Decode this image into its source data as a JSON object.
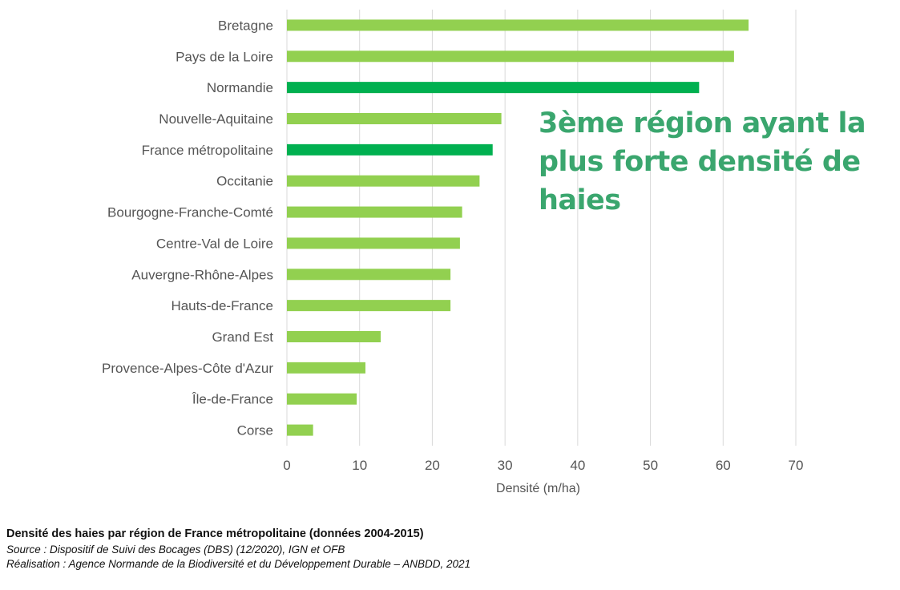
{
  "chart_data": {
    "type": "bar",
    "orientation": "horizontal",
    "categories": [
      "Bretagne",
      "Pays de la Loire",
      "Normandie",
      "Nouvelle-Aquitaine",
      "France métropolitaine",
      "Occitanie",
      "Bourgogne-Franche-Comté",
      "Centre-Val de Loire",
      "Auvergne-Rhône-Alpes",
      "Hauts-de-France",
      "Grand Est",
      "Provence-Alpes-Côte d'Azur",
      "Île-de-France",
      "Corse"
    ],
    "values": [
      63.5,
      61.5,
      56.7,
      29.5,
      28.3,
      26.5,
      24.1,
      23.8,
      22.5,
      22.5,
      12.9,
      10.8,
      9.6,
      3.6
    ],
    "highlighted": [
      "Normandie",
      "France métropolitaine"
    ],
    "bar_color": "#92d050",
    "highlight_color": "#00b050",
    "xlabel": "Densité (m/ha)",
    "xlim": [
      0,
      70
    ],
    "xticks": [
      0,
      10,
      20,
      30,
      40,
      50,
      60,
      70
    ],
    "grid": true
  },
  "annotation": "3ème région ayant la plus forte densité de haies",
  "caption": {
    "title": "Densité des haies par région de France métropolitaine (données 2004-2015)",
    "source": "Source : Dispositif de Suivi des Bocages (DBS) (12/2020), IGN et OFB",
    "credit": "Réalisation : Agence Normande de la Biodiversité et du Développement Durable – ANBDD, 2021"
  }
}
